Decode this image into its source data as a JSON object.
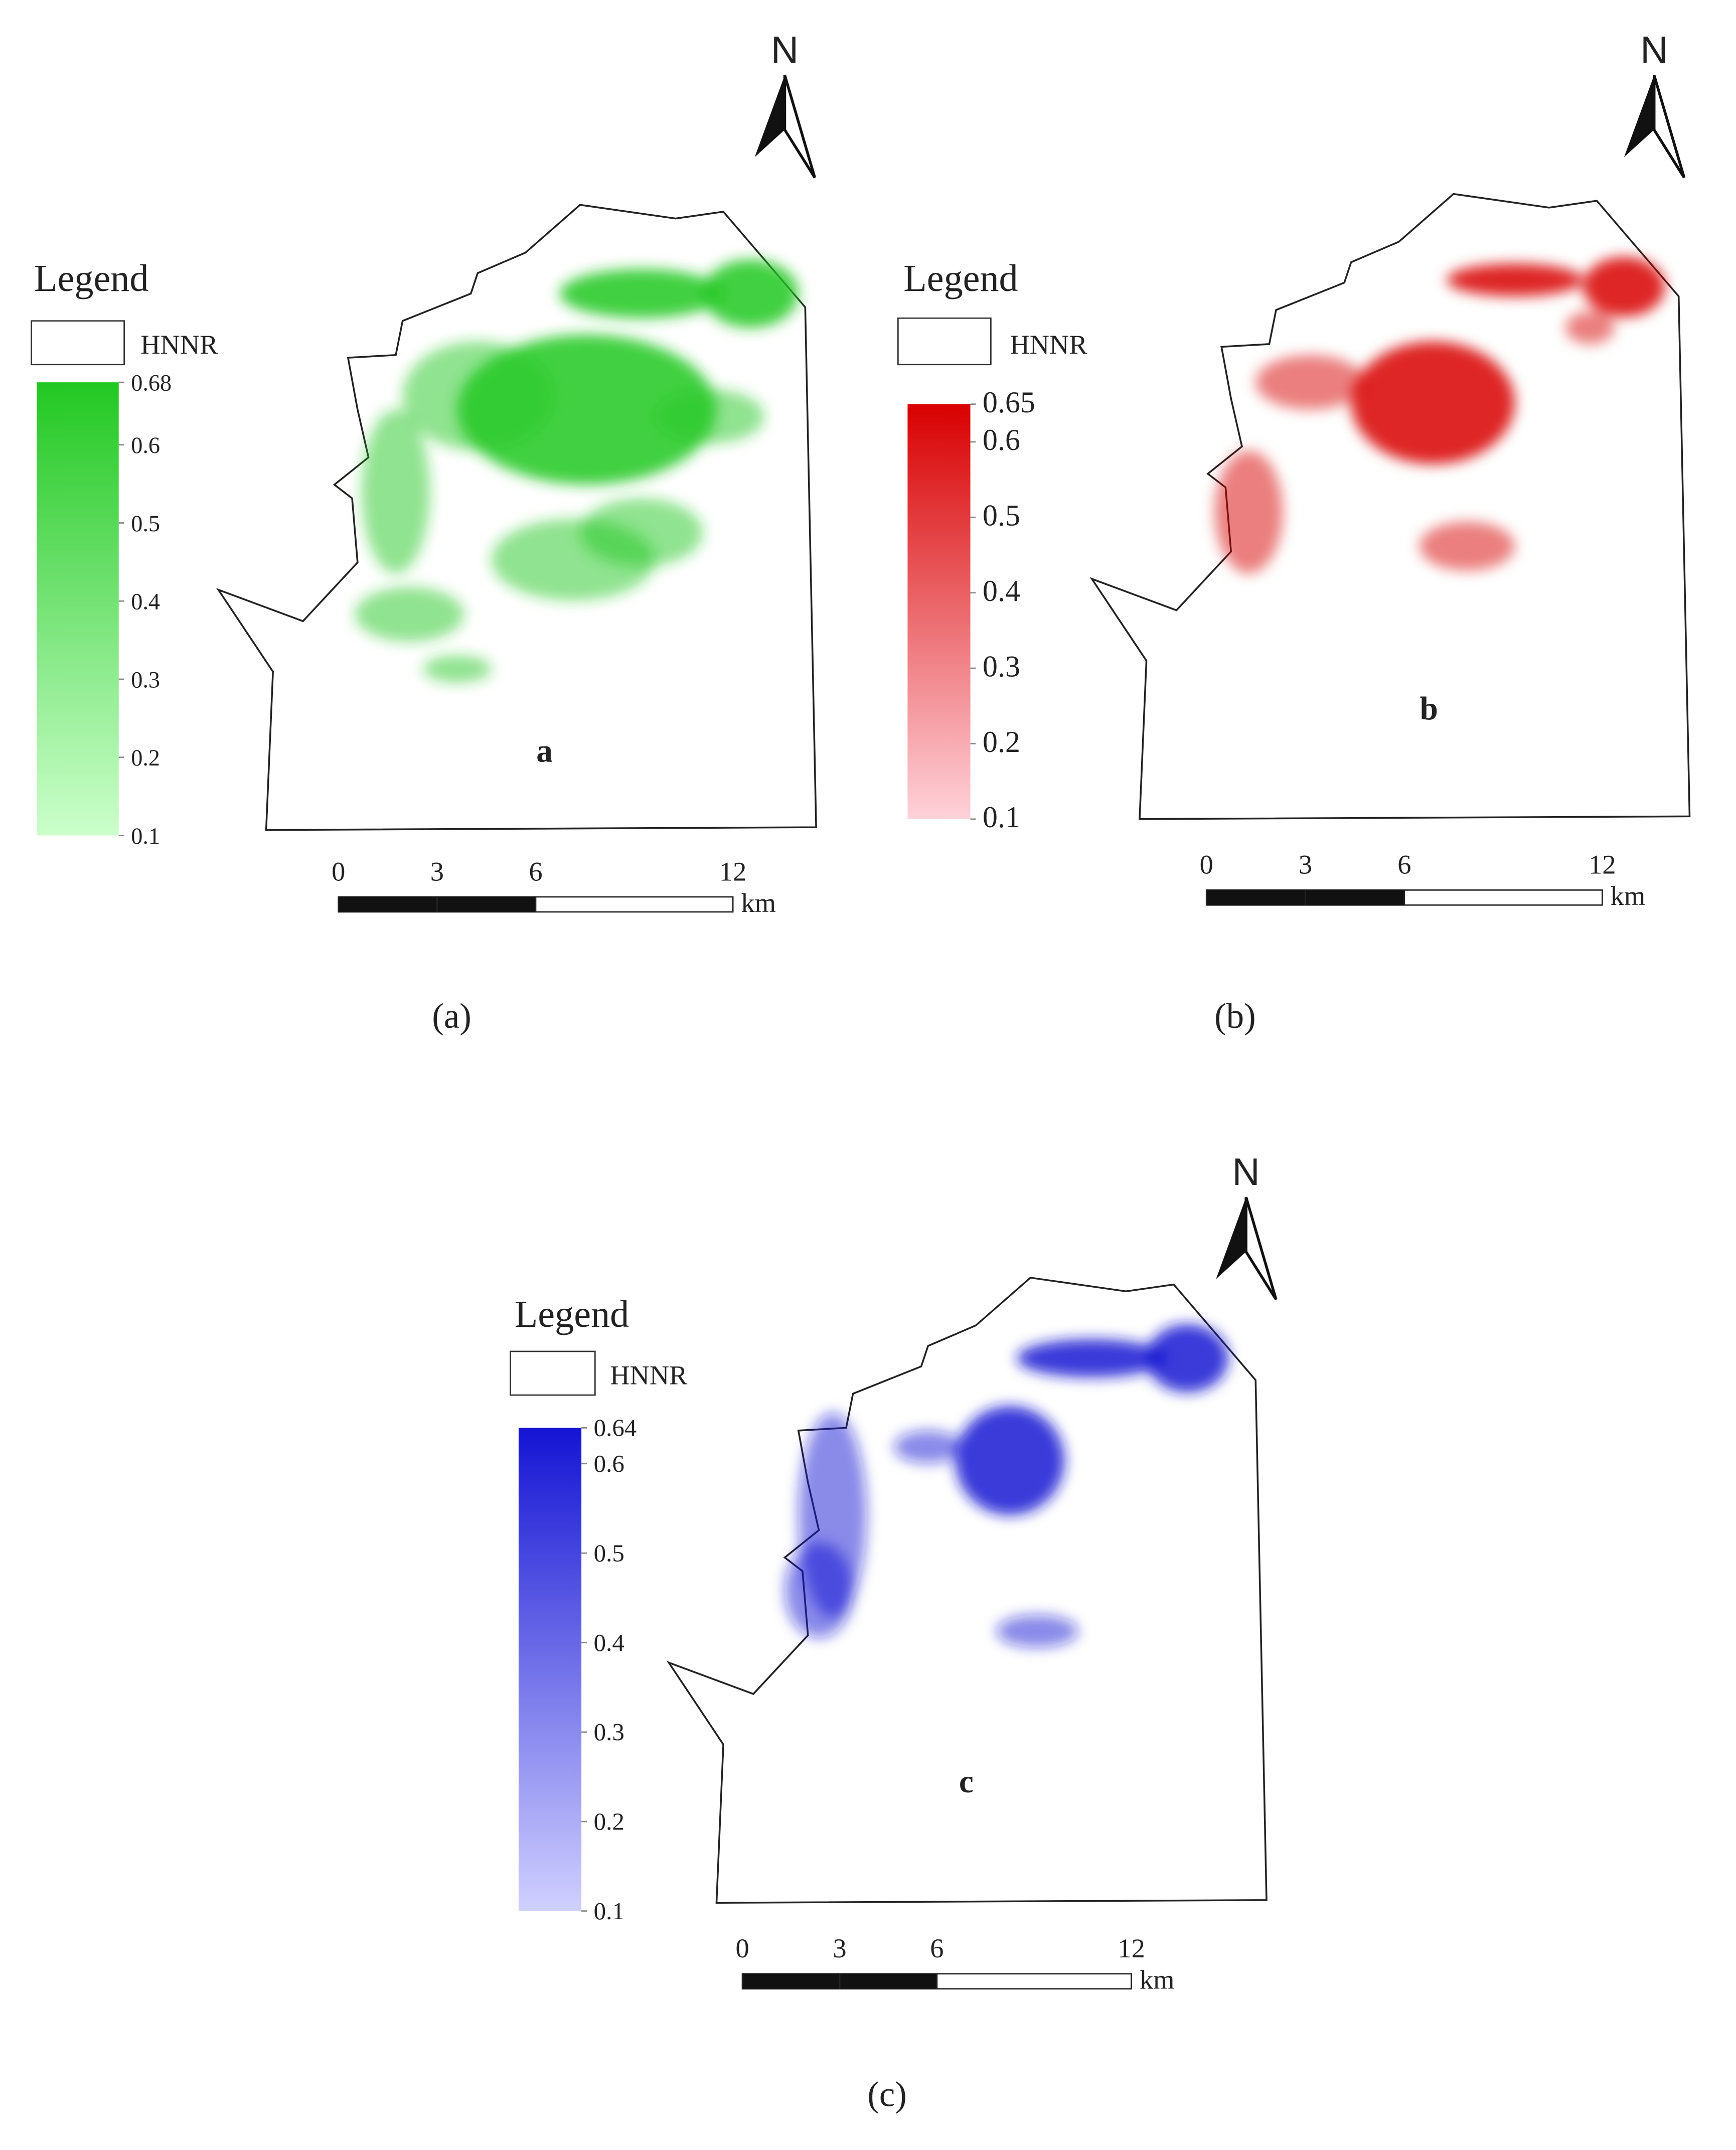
{
  "panels": [
    {
      "legend_title": "Legend",
      "legend_item": "HNNR",
      "colorbar": {
        "ticks": [
          0.68,
          0.6,
          0.5,
          0.4,
          0.3,
          0.2,
          0.1
        ]
      },
      "color": "#22c822",
      "light": "#ccffcc",
      "map_label": "a",
      "north": "N",
      "scale": {
        "ticks": [
          0,
          3,
          6,
          12
        ],
        "unit": "km"
      },
      "caption": "(a)"
    },
    {
      "legend_title": "Legend",
      "legend_item": "HNNR",
      "colorbar": {
        "ticks": [
          0.65,
          0.6,
          0.5,
          0.4,
          0.3,
          0.2,
          0.1
        ]
      },
      "color": "#d80000",
      "light": "#ffd2da",
      "map_label": "b",
      "north": "N",
      "scale": {
        "ticks": [
          0,
          3,
          6,
          12
        ],
        "unit": "km"
      },
      "caption": "(b)"
    },
    {
      "legend_title": "Legend",
      "legend_item": "HNNR",
      "colorbar": {
        "ticks": [
          0.64,
          0.6,
          0.5,
          0.4,
          0.3,
          0.2,
          0.1
        ]
      },
      "color": "#1414d4",
      "light": "#d0d0ff",
      "map_label": "c",
      "north": "N",
      "scale": {
        "ticks": [
          0,
          3,
          6,
          12
        ],
        "unit": "km"
      },
      "caption": "(c)"
    }
  ]
}
